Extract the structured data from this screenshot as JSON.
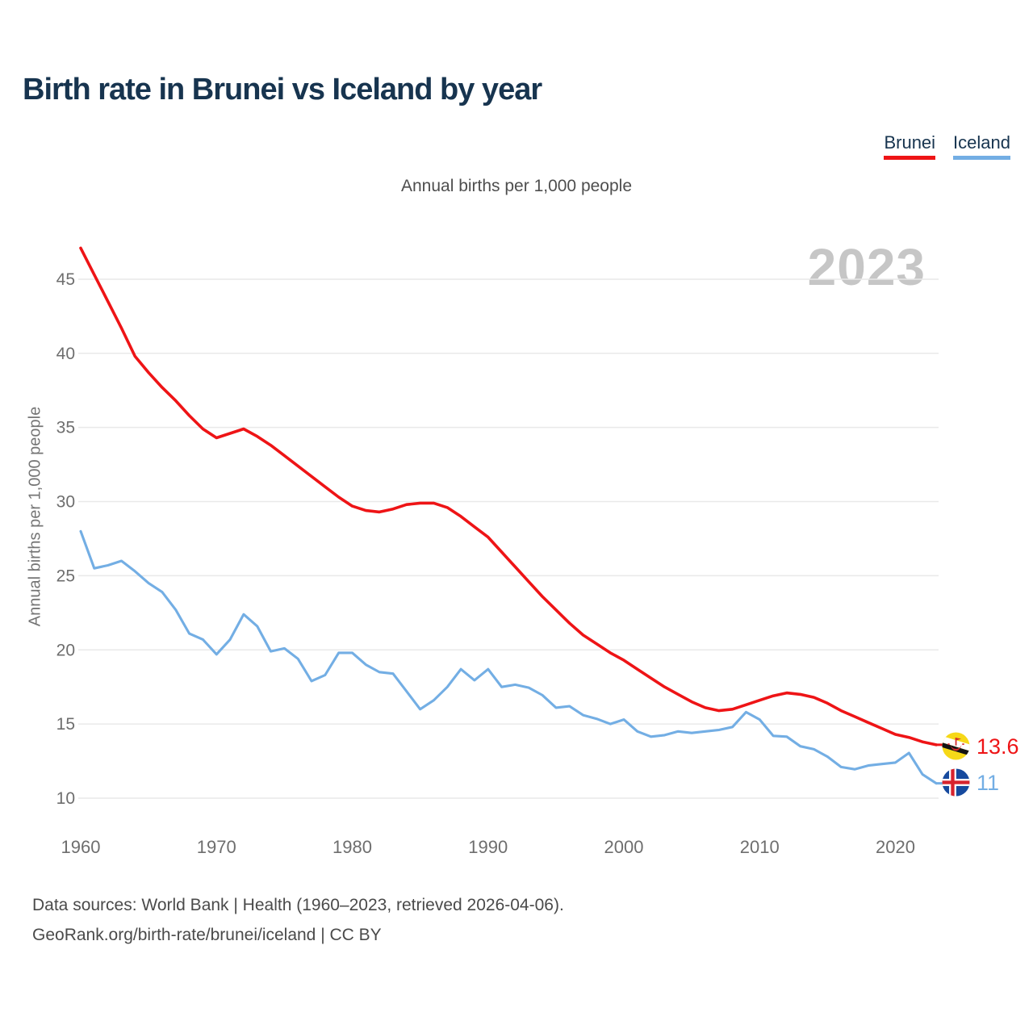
{
  "header": {
    "title": "Birth rate in Brunei vs Iceland by year"
  },
  "legend": {
    "items": [
      {
        "label": "Brunei",
        "color": "#EE1416"
      },
      {
        "label": "Iceland",
        "color": "#73AEE4"
      }
    ]
  },
  "subtitle": "Annual births per 1,000 people",
  "watermark": "2023",
  "end_labels": {
    "brunei": "13.6",
    "iceland": "11"
  },
  "footer": {
    "line1": "Data sources: World Bank | Health (1960–2023, retrieved 2026-04-06).",
    "line2": "GeoRank.org/birth-rate/brunei/iceland | CC BY"
  },
  "icons": {
    "brunei_flag": "brunei-flag-icon",
    "iceland_flag": "iceland-flag-icon"
  },
  "colors": {
    "title_navy": "#17344F",
    "brunei_red": "#EE1416",
    "iceland_blue": "#73AEE4",
    "grid": "#E9E9E9",
    "tick_text": "#6E6E6E",
    "watermark_gray": "#C6C6C6"
  },
  "chart_data": {
    "type": "line",
    "title": "Birth rate in Brunei vs Iceland by year",
    "subtitle": "Annual births per 1,000 people",
    "xlabel": "",
    "ylabel": "Annual births per 1,000 people",
    "xlim": [
      1960,
      2023
    ],
    "ylim": [
      10,
      47.5
    ],
    "grid": true,
    "legend_position": "top-right",
    "yticks": [
      10,
      15,
      20,
      25,
      30,
      35,
      40,
      45
    ],
    "xticks": [
      1960,
      1970,
      1980,
      1990,
      2000,
      2010,
      2020
    ],
    "x": [
      1960,
      1961,
      1962,
      1963,
      1964,
      1965,
      1966,
      1967,
      1968,
      1969,
      1970,
      1971,
      1972,
      1973,
      1974,
      1975,
      1976,
      1977,
      1978,
      1979,
      1980,
      1981,
      1982,
      1983,
      1984,
      1985,
      1986,
      1987,
      1988,
      1989,
      1990,
      1991,
      1992,
      1993,
      1994,
      1995,
      1996,
      1997,
      1998,
      1999,
      2000,
      2001,
      2002,
      2003,
      2004,
      2005,
      2006,
      2007,
      2008,
      2009,
      2010,
      2011,
      2012,
      2013,
      2014,
      2015,
      2016,
      2017,
      2018,
      2019,
      2020,
      2021,
      2022,
      2023
    ],
    "series": [
      {
        "name": "Brunei",
        "color": "#EE1416",
        "end_label": "13.6",
        "values": [
          47.1,
          45.3,
          43.5,
          41.7,
          39.8,
          38.7,
          37.7,
          36.8,
          35.8,
          34.9,
          34.3,
          34.6,
          34.9,
          34.4,
          33.8,
          33.1,
          32.4,
          31.7,
          31.0,
          30.3,
          29.7,
          29.4,
          29.3,
          29.5,
          29.8,
          29.9,
          29.9,
          29.6,
          29.0,
          28.3,
          27.6,
          26.6,
          25.6,
          24.6,
          23.6,
          22.7,
          21.8,
          21.0,
          20.4,
          19.8,
          19.3,
          18.7,
          18.1,
          17.5,
          17.0,
          16.5,
          16.1,
          15.9,
          16.0,
          16.3,
          16.6,
          16.9,
          17.1,
          17.0,
          16.8,
          16.4,
          15.9,
          15.5,
          15.1,
          14.7,
          14.3,
          14.1,
          13.8,
          13.6
        ]
      },
      {
        "name": "Iceland",
        "color": "#73AEE4",
        "end_label": "11",
        "values": [
          28.0,
          25.5,
          25.7,
          26.0,
          25.3,
          24.5,
          23.9,
          22.7,
          21.1,
          20.7,
          19.7,
          20.7,
          22.4,
          21.6,
          19.9,
          20.1,
          19.4,
          17.9,
          18.3,
          19.8,
          19.8,
          19.0,
          18.5,
          18.4,
          17.2,
          16.0,
          16.6,
          17.5,
          18.7,
          17.95,
          18.7,
          17.5,
          17.65,
          17.45,
          16.95,
          16.1,
          16.2,
          15.6,
          15.35,
          15.0,
          15.3,
          14.5,
          14.15,
          14.25,
          14.5,
          14.4,
          14.5,
          14.6,
          14.8,
          15.8,
          15.3,
          14.2,
          14.15,
          13.5,
          13.3,
          12.8,
          12.1,
          11.95,
          12.2,
          12.3,
          12.4,
          13.05,
          11.6,
          11.0
        ]
      }
    ]
  }
}
